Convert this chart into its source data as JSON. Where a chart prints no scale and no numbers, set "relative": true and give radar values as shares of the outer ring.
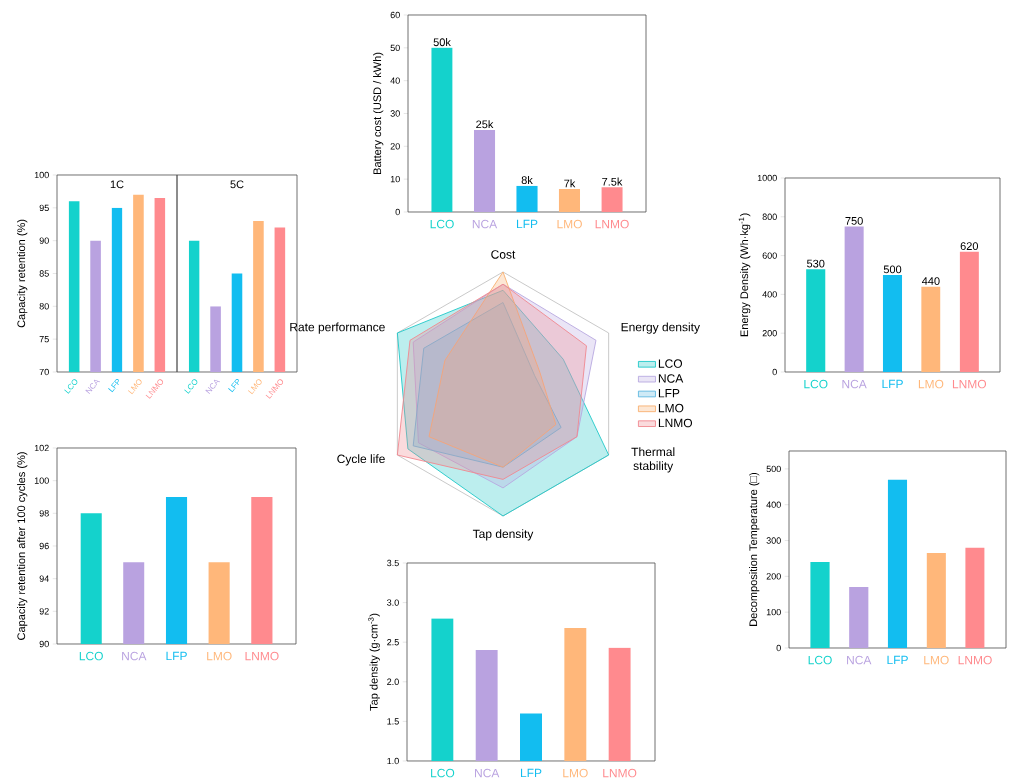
{
  "chart_data": [
    {
      "type": "bar",
      "categories": [
        "LCO",
        "NCA",
        "LFP",
        "LMO",
        "LNMO"
      ],
      "values": [
        50,
        25,
        8,
        7,
        7.5
      ],
      "value_labels": [
        "50k",
        "25k",
        "8k",
        "7k",
        "7.5k"
      ],
      "colors": [
        "#14d2cc",
        "#b9a2e0",
        "#12bdf0",
        "#ffb77a",
        "#ff8a8e"
      ],
      "ylabel": "Battery cost (USD / kWh)",
      "ylim": [
        0,
        60
      ],
      "yticks": [
        0,
        10,
        20,
        30,
        40,
        50,
        60
      ]
    },
    {
      "type": "bar",
      "title": "1C",
      "categories": [
        "LCO",
        "NCA",
        "LFP",
        "LMO",
        "LNMO"
      ],
      "values": [
        96,
        90,
        95,
        97,
        96.5
      ],
      "colors": [
        "#14d2cc",
        "#b9a2e0",
        "#12bdf0",
        "#ffb77a",
        "#ff8a8e"
      ],
      "ylabel": "Capacity retention (%)",
      "ylim": [
        70,
        100
      ],
      "yticks": [
        70,
        75,
        80,
        85,
        90,
        95,
        100
      ]
    },
    {
      "type": "bar",
      "title": "5C",
      "categories": [
        "LCO",
        "NCA",
        "LFP",
        "LMO",
        "LNMO"
      ],
      "values": [
        90,
        80,
        85,
        93,
        92
      ],
      "colors": [
        "#14d2cc",
        "#b9a2e0",
        "#12bdf0",
        "#ffb77a",
        "#ff8a8e"
      ],
      "ylim": [
        70,
        100
      ],
      "tick_labels": "x"
    },
    {
      "type": "bar",
      "categories": [
        "LCO",
        "NCA",
        "LFP",
        "LMO",
        "LNMO"
      ],
      "values": [
        530,
        750,
        500,
        440,
        620
      ],
      "data_labels": true,
      "colors": [
        "#14d2cc",
        "#b9a2e0",
        "#12bdf0",
        "#ffb77a",
        "#ff8a8e"
      ],
      "ylabel": "Energy Density (Wh·kg$^{-1}$)",
      "ylim": [
        0,
        1000
      ],
      "yticks": [
        0,
        200,
        400,
        600,
        800,
        1000
      ]
    },
    {
      "type": "radar",
      "relative": true,
      "categories": [
        "Cost",
        "Energy density",
        "Thermal stability",
        "Tap density",
        "Cycle life",
        "Rate performance"
      ],
      "legend": "right",
      "series": [
        {
          "name": "LCO",
          "color": "#20c8c8",
          "values": [
            0.85,
            0.57,
            1.0,
            1.0,
            0.9,
            1.0
          ]
        },
        {
          "name": "NCA",
          "color": "#b8a8e0",
          "values": [
            0.9,
            0.88,
            0.7,
            0.77,
            0.8,
            0.85
          ]
        },
        {
          "name": "LFP",
          "color": "#60b8e0",
          "values": [
            0.75,
            0.3,
            0.55,
            0.6,
            0.85,
            0.75
          ]
        },
        {
          "name": "LMO",
          "color": "#f8b070",
          "values": [
            1.0,
            0.35,
            0.5,
            0.6,
            0.7,
            0.55
          ]
        },
        {
          "name": "LNMO",
          "color": "#f08890",
          "values": [
            0.9,
            0.79,
            0.7,
            0.7,
            1.0,
            0.88
          ]
        }
      ]
    },
    {
      "type": "bar",
      "categories": [
        "LCO",
        "NCA",
        "LFP",
        "LMO",
        "LNMO"
      ],
      "values": [
        98,
        95,
        99,
        95,
        99
      ],
      "colors": [
        "#14d2cc",
        "#b9a2e0",
        "#12bdf0",
        "#ffb77a",
        "#ff8a8e"
      ],
      "ylabel": "Capacity retention after 100 cycles (%)",
      "ylim": [
        90,
        102
      ],
      "yticks": [
        90,
        92,
        94,
        96,
        98,
        100,
        102
      ]
    },
    {
      "type": "bar",
      "categories": [
        "LCO",
        "NCA",
        "LFP",
        "LMO",
        "LNMO"
      ],
      "values": [
        240,
        170,
        470,
        265,
        280
      ],
      "colors": [
        "#14d2cc",
        "#b9a2e0",
        "#12bdf0",
        "#ffb77a",
        "#ff8a8e"
      ],
      "ylabel": "Decomposition Temperature (□)",
      "ylim": [
        0,
        550
      ],
      "yticks": [
        0,
        100,
        200,
        300,
        400,
        500
      ]
    },
    {
      "type": "bar",
      "categories": [
        "LCO",
        "NCA",
        "LFP",
        "LMO",
        "LNMO"
      ],
      "values": [
        2.8,
        2.4,
        1.6,
        2.68,
        2.43
      ],
      "colors": [
        "#14d2cc",
        "#b9a2e0",
        "#12bdf0",
        "#ffb77a",
        "#ff8a8e"
      ],
      "ylabel": "Tap density (g·cm$^{-3}$)",
      "ylim": [
        1.0,
        3.5
      ],
      "yticks": [
        {
          "value": 1.0,
          "label": "1.0"
        },
        {
          "value": 1.5,
          "label": "1.5"
        },
        {
          "value": 2.0,
          "label": "2.0"
        },
        {
          "value": 2.5,
          "label": "2.5"
        },
        {
          "value": 3.0,
          "label": "3.0"
        },
        {
          "value": 3.5,
          "label": "3.5"
        }
      ]
    }
  ]
}
